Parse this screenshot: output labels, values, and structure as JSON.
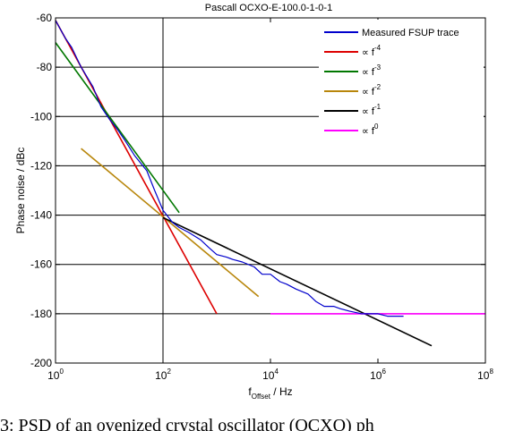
{
  "chart_data": {
    "type": "line",
    "title": "Pascall OCXO-E-100.0-1-0-1",
    "xlabel": {
      "base": "f",
      "subscript": "Offset",
      "suffix": " / Hz"
    },
    "ylabel": "Phase noise / dBc",
    "x_scale": "log",
    "xlim": [
      1,
      100000000
    ],
    "ylim": [
      -200,
      -60
    ],
    "x_ticks": [
      {
        "value": 1,
        "base": "10",
        "exp": "0"
      },
      {
        "value": 100,
        "base": "10",
        "exp": "2"
      },
      {
        "value": 10000,
        "base": "10",
        "exp": "4"
      },
      {
        "value": 1000000,
        "base": "10",
        "exp": "6"
      },
      {
        "value": 100000000,
        "base": "10",
        "exp": "8"
      }
    ],
    "y_ticks": [
      "-60",
      "-80",
      "-100",
      "-120",
      "-140",
      "-160",
      "-180",
      "-200"
    ],
    "grid": {
      "x_major": [
        100
      ],
      "y_major": [
        -80,
        -100,
        -120,
        -140,
        -160,
        -180
      ]
    },
    "legend_position": "top-right",
    "series": [
      {
        "name": "Measured FSUP trace",
        "color": "#0000cc",
        "x": [
          1,
          1.5,
          2,
          3,
          5,
          7,
          10,
          15,
          20,
          30,
          50,
          70,
          100,
          150,
          200,
          300,
          500,
          700,
          1000,
          1500,
          2000,
          3000,
          5000,
          7000,
          10000,
          15000,
          20000,
          30000,
          50000,
          70000,
          100000,
          150000,
          200000,
          300000,
          500000,
          700000,
          1000000,
          1500000,
          2000000,
          3000000
        ],
        "y": [
          -61,
          -68,
          -72,
          -80,
          -88,
          -96,
          -101,
          -106,
          -110,
          -116,
          -122,
          -130,
          -138,
          -143,
          -145,
          -147,
          -150,
          -153,
          -156,
          -157,
          -158,
          -159,
          -161,
          -164,
          -164,
          -167,
          -168,
          -170,
          -172,
          -175,
          -177,
          -177,
          -178,
          -179,
          -180,
          -180,
          -180,
          -181,
          -181,
          -181
        ]
      },
      {
        "name": "∝ f⁻⁴",
        "label_base": "∝ f",
        "label_exp": "-4",
        "color": "#dd0000",
        "x": [
          1,
          1000
        ],
        "y": [
          -61,
          -180
        ]
      },
      {
        "name": "∝ f⁻³",
        "label_base": "∝ f",
        "label_exp": "-3",
        "color": "#007700",
        "x": [
          1,
          200
        ],
        "y": [
          -70,
          -139
        ]
      },
      {
        "name": "∝ f⁻²",
        "label_base": "∝ f",
        "label_exp": "-2",
        "color": "#b8860b",
        "x": [
          3,
          6000
        ],
        "y": [
          -113,
          -173
        ]
      },
      {
        "name": "∝ f⁻¹",
        "label_base": "∝ f",
        "label_exp": "-1",
        "color": "#000000",
        "x": [
          100,
          10000000
        ],
        "y": [
          -141,
          -193
        ]
      },
      {
        "name": "∝ f⁰",
        "label_base": "∝ f",
        "label_exp": "0",
        "color": "#ff00ff",
        "x": [
          10000,
          100000000
        ],
        "y": [
          -180,
          -180
        ]
      }
    ]
  },
  "caption": "3: PSD of an ovenized crystal oscillator (OCXO) ph"
}
